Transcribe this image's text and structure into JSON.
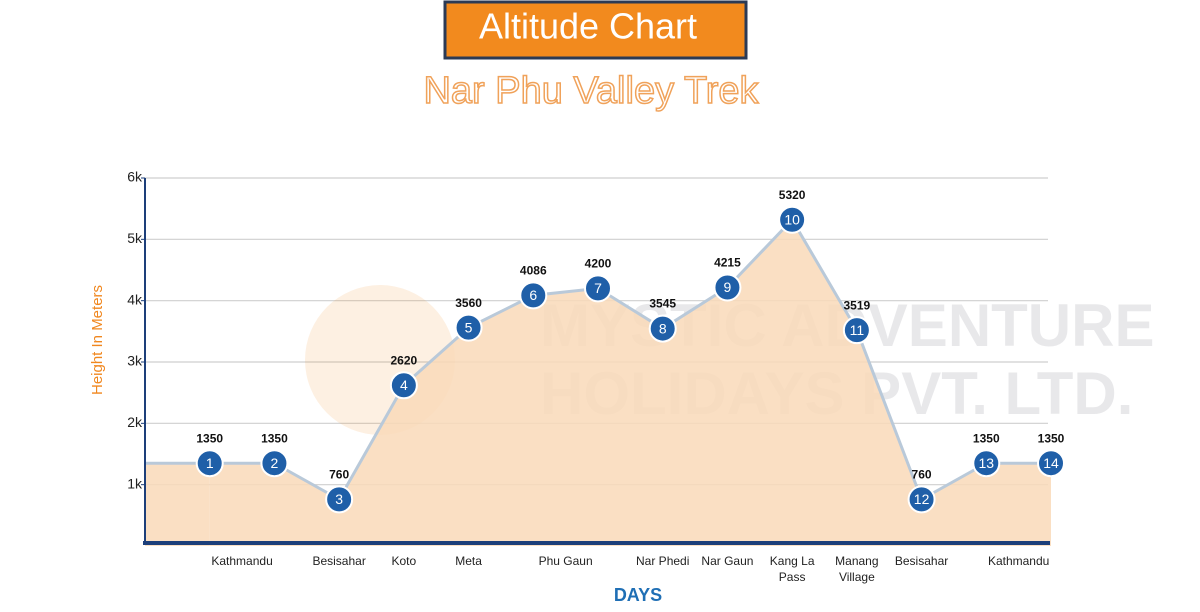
{
  "chart_data": {
    "type": "area",
    "title": "Altitude Chart",
    "subtitle": "Nar Phu Valley Trek",
    "y_label": "Height In Meters",
    "x_label": "DAYS",
    "watermark": [
      "MYSTIC ADVENTURE",
      "HOLIDAYS PVT. LTD."
    ],
    "x": [
      1,
      2,
      3,
      4,
      5,
      6,
      7,
      8,
      9,
      10,
      11,
      12,
      13,
      14
    ],
    "values": [
      1350,
      1350,
      760,
      2620,
      3560,
      4086,
      4200,
      3545,
      4215,
      5320,
      3519,
      760,
      1350,
      1350
    ],
    "xlim": [
      0,
      14
    ],
    "xticks": [
      {
        "value": 1.5,
        "label": "Kathmandu"
      },
      {
        "value": 3,
        "label": "Besisahar"
      },
      {
        "value": 4,
        "label": "Koto"
      },
      {
        "value": 5,
        "label": "Meta"
      },
      {
        "value": 6.5,
        "label": "Phu Gaun"
      },
      {
        "value": 8,
        "label": "Nar Phedi"
      },
      {
        "value": 9,
        "label": "Nar Gaun"
      },
      {
        "value": 10,
        "label": "Kang La Pass"
      },
      {
        "value": 11,
        "label": "Manang Village"
      },
      {
        "value": 12,
        "label": "Besisahar"
      },
      {
        "value": 13.5,
        "label": "Kathmandu"
      }
    ],
    "ylim": [
      0,
      6000
    ],
    "yticks": [
      {
        "value": 1000,
        "label": "1k"
      },
      {
        "value": 2000,
        "label": "2k"
      },
      {
        "value": 3000,
        "label": "3k"
      },
      {
        "value": 4000,
        "label": "4k"
      },
      {
        "value": 5000,
        "label": "5k"
      },
      {
        "value": 6000,
        "label": "6k"
      }
    ],
    "grid": true,
    "color": "#1f5fa8",
    "fill_color": "#f9d9b8",
    "line_color": "#b9c9d9"
  }
}
